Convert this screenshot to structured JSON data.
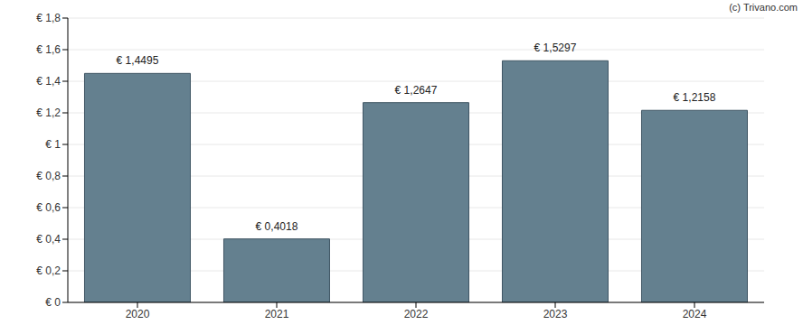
{
  "chart_data": {
    "type": "bar",
    "annotations": [
      "(c) Trivano.com"
    ],
    "categories": [
      "2020",
      "2021",
      "2022",
      "2023",
      "2024"
    ],
    "values": [
      1.4495,
      0.4018,
      1.2647,
      1.5297,
      1.2158
    ],
    "value_labels": [
      "€ 1,4495",
      "€ 0,4018",
      "€ 1,2647",
      "€ 1,5297",
      "€ 1,2158"
    ],
    "data_labels": true,
    "color": "#64808f",
    "ylim": [
      0,
      1.8
    ],
    "yticks": [
      {
        "value": 0,
        "label": "€ 0"
      },
      {
        "value": 0.2,
        "label": "€ 0,2"
      },
      {
        "value": 0.4,
        "label": "€ 0,4"
      },
      {
        "value": 0.6,
        "label": "€ 0,6"
      },
      {
        "value": 0.8,
        "label": "€ 0,8"
      },
      {
        "value": 1,
        "label": "€ 1"
      },
      {
        "value": 1.2,
        "label": "€ 1,2"
      },
      {
        "value": 1.4,
        "label": "€ 1,4"
      },
      {
        "value": 1.6,
        "label": "€ 1,6"
      },
      {
        "value": 1.8,
        "label": "€ 1,8"
      }
    ],
    "grid": true
  }
}
